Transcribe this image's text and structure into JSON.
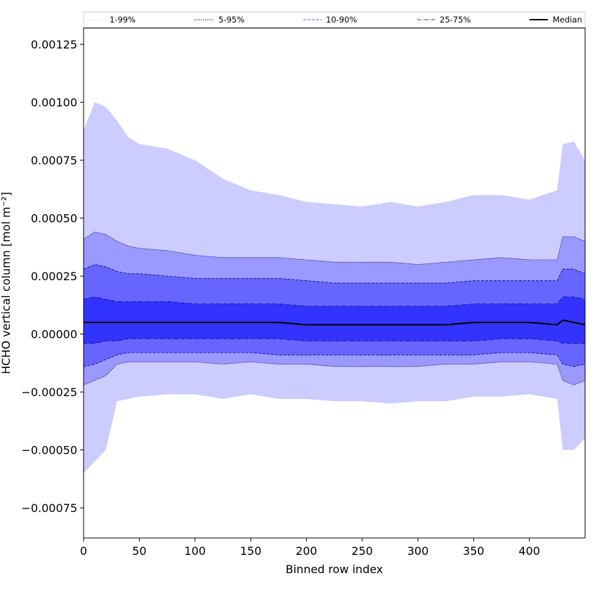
{
  "chart_data": {
    "type": "area",
    "xlabel": "Binned row index",
    "ylabel": "HCHO vertical column [mol m⁻²]",
    "xlim": [
      0,
      450
    ],
    "ylim": [
      -0.00088,
      0.00132
    ],
    "xticks": [
      0,
      50,
      100,
      150,
      200,
      250,
      300,
      350,
      400
    ],
    "yticks": [
      -0.00075,
      -0.0005,
      -0.00025,
      0.0,
      0.00025,
      0.0005,
      0.00075,
      0.001,
      0.00125
    ],
    "ytick_labels": [
      "−0.00075",
      "−0.00050",
      "−0.00025",
      "0.00000",
      "0.00025",
      "0.00050",
      "0.00075",
      "0.00100",
      "0.00125"
    ],
    "xtick_labels": [
      "0",
      "50",
      "100",
      "150",
      "200",
      "250",
      "300",
      "350",
      "400"
    ],
    "legend_position": "top",
    "legend": [
      {
        "label": "1-99%",
        "color": "#ccccff",
        "style": "dotted"
      },
      {
        "label": "5-95%",
        "color": "#0000a0",
        "style": "dotted"
      },
      {
        "label": "10-90%",
        "color": "#5555dd",
        "style": "dashed"
      },
      {
        "label": "25-75%",
        "color": "#2222cc",
        "style": "dashdot"
      },
      {
        "label": "Median",
        "color": "#000000",
        "style": "solid"
      }
    ],
    "colors": {
      "band_1_99": "#ccccff",
      "band_5_95": "#9999ff",
      "band_10_90": "#6666ff",
      "band_25_75": "#3333ff",
      "median": "#000000",
      "percentile_line": "#000080"
    },
    "x": [
      0,
      10,
      20,
      30,
      40,
      50,
      75,
      100,
      125,
      150,
      175,
      200,
      225,
      250,
      275,
      300,
      325,
      350,
      375,
      400,
      425,
      430,
      440,
      450
    ],
    "series": [
      {
        "name": "1-99%",
        "lower": [
          -0.0006,
          -0.00055,
          -0.0005,
          -0.00029,
          -0.00028,
          -0.00027,
          -0.00026,
          -0.00026,
          -0.00028,
          -0.00026,
          -0.00028,
          -0.00028,
          -0.00029,
          -0.00029,
          -0.0003,
          -0.00029,
          -0.00029,
          -0.00027,
          -0.00027,
          -0.00026,
          -0.00028,
          -0.0005,
          -0.0005,
          -0.00045
        ],
        "upper": [
          0.00088,
          0.001,
          0.00098,
          0.00092,
          0.00085,
          0.00082,
          0.0008,
          0.00075,
          0.00067,
          0.00062,
          0.0006,
          0.00057,
          0.00056,
          0.00055,
          0.00057,
          0.00055,
          0.00057,
          0.0006,
          0.0006,
          0.00058,
          0.00062,
          0.00082,
          0.00083,
          0.00075
        ]
      },
      {
        "name": "5-95%",
        "lower": [
          -0.00022,
          -0.0002,
          -0.00018,
          -0.00013,
          -0.00012,
          -0.00012,
          -0.00012,
          -0.00012,
          -0.00013,
          -0.00012,
          -0.00013,
          -0.00013,
          -0.00014,
          -0.00014,
          -0.00014,
          -0.00014,
          -0.00013,
          -0.00013,
          -0.00012,
          -0.00012,
          -0.00013,
          -0.0002,
          -0.00022,
          -0.0002
        ],
        "upper": [
          0.00041,
          0.00044,
          0.00043,
          0.0004,
          0.00038,
          0.00037,
          0.00036,
          0.00034,
          0.00033,
          0.00033,
          0.00033,
          0.00032,
          0.00031,
          0.00031,
          0.00031,
          0.0003,
          0.00031,
          0.00032,
          0.00033,
          0.00032,
          0.00032,
          0.00042,
          0.00042,
          0.0004
        ]
      },
      {
        "name": "10-90%",
        "lower": [
          -0.00014,
          -0.00013,
          -0.00011,
          -9e-05,
          -8e-05,
          -8e-05,
          -8e-05,
          -8e-05,
          -8e-05,
          -8e-05,
          -9e-05,
          -9e-05,
          -9e-05,
          -9e-05,
          -9e-05,
          -9e-05,
          -9e-05,
          -9e-05,
          -8e-05,
          -8e-05,
          -9e-05,
          -0.00013,
          -0.00014,
          -0.00013
        ],
        "upper": [
          0.00028,
          0.0003,
          0.00029,
          0.00027,
          0.00026,
          0.00026,
          0.00025,
          0.00024,
          0.00024,
          0.00024,
          0.00024,
          0.00023,
          0.00022,
          0.00022,
          0.00022,
          0.00022,
          0.00022,
          0.00023,
          0.00023,
          0.00023,
          0.00023,
          0.00028,
          0.00028,
          0.00026
        ]
      },
      {
        "name": "25-75%",
        "lower": [
          -4e-05,
          -4e-05,
          -3e-05,
          -3e-05,
          -2e-05,
          -2e-05,
          -2e-05,
          -2e-05,
          -2e-05,
          -2e-05,
          -2e-05,
          -3e-05,
          -3e-05,
          -3e-05,
          -3e-05,
          -3e-05,
          -3e-05,
          -3e-05,
          -2e-05,
          -2e-05,
          -3e-05,
          -4e-05,
          -4e-05,
          -4e-05
        ],
        "upper": [
          0.00015,
          0.00016,
          0.00015,
          0.00014,
          0.00014,
          0.00014,
          0.00014,
          0.00013,
          0.00013,
          0.00013,
          0.00013,
          0.00012,
          0.00012,
          0.00012,
          0.00012,
          0.00012,
          0.00012,
          0.00013,
          0.00013,
          0.00013,
          0.00013,
          0.00016,
          0.00016,
          0.00015
        ]
      },
      {
        "name": "Median",
        "values": [
          5e-05,
          5e-05,
          5e-05,
          5e-05,
          5e-05,
          5e-05,
          5e-05,
          5e-05,
          5e-05,
          5e-05,
          5e-05,
          4e-05,
          4e-05,
          4e-05,
          4e-05,
          4e-05,
          4e-05,
          5e-05,
          5e-05,
          5e-05,
          4e-05,
          6e-05,
          5e-05,
          4e-05
        ]
      }
    ]
  }
}
